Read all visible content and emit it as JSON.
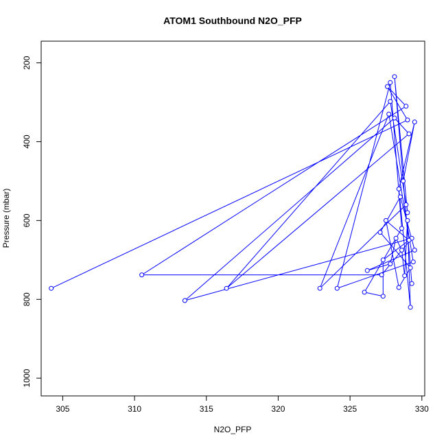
{
  "chart_data": {
    "type": "line",
    "title": "ATOM1 Southbound N2O_PFP",
    "xlabel": "N2O_PFP",
    "ylabel": "Pressure (mbar)",
    "xlim": [
      303.5,
      330.2
    ],
    "ylim": [
      1045,
      145
    ],
    "y_reversed": true,
    "x_ticks": [
      "305",
      "310",
      "315",
      "320",
      "325",
      "330"
    ],
    "y_ticks": [
      "200",
      "400",
      "600",
      "800",
      "1000"
    ],
    "grid": false,
    "legend": "none",
    "series_color": "#0000ff",
    "marker": "open-circle",
    "series": [
      {
        "x": [
          304.2,
          329.0,
          327.6,
          328.9,
          310.5,
          327.2,
          329.3,
          313.5,
          328.1,
          329.1,
          316.4,
          327.8,
          328.9,
          322.9,
          327.7,
          329.4,
          324.1,
          327.8,
          328.6,
          326.0,
          327.3,
          327.3,
          329.1,
          327.5,
          328.4,
          329.2,
          327.1,
          328.5,
          329.5,
          326.2,
          327.8,
          328.2,
          328.6,
          328.8,
          329.0,
          329.2,
          328.4,
          329.5,
          328.7,
          329.3,
          328.1,
          329.0
        ],
        "y": [
          772,
          345,
          260,
          310,
          738,
          738,
          645,
          803,
          340,
          380,
          772,
          298,
          560,
          772,
          330,
          705,
          772,
          250,
          620,
          782,
          792,
          700,
          650,
          600,
          770,
          720,
          630,
          540,
          675,
          727,
          710,
          645,
          675,
          740,
          600,
          820,
          520,
          350,
          500,
          760,
          235,
          580
        ]
      }
    ]
  }
}
